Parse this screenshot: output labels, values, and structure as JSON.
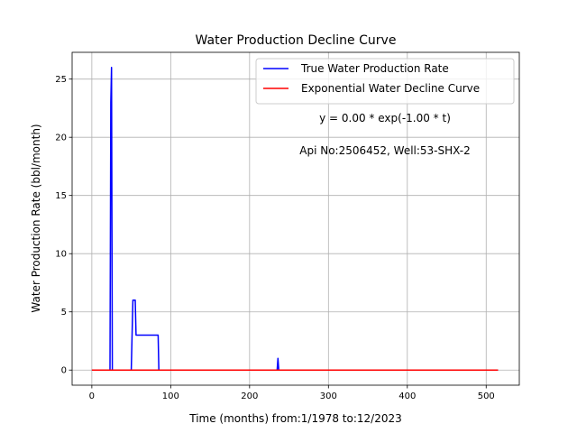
{
  "chart_data": {
    "type": "line",
    "title": "Water Production Decline Curve",
    "xlabel": "Time (months) from:1/1978 to:12/2023",
    "ylabel": "Water Production Rate (bbl/month)",
    "xlim": [
      -25,
      542
    ],
    "ylim": [
      -1.3,
      27.3
    ],
    "xticks": [
      0,
      100,
      200,
      300,
      400,
      500
    ],
    "yticks": [
      0,
      5,
      10,
      15,
      20,
      25
    ],
    "grid": true,
    "legend_position": "top-right",
    "series": [
      {
        "name": "True Water Production Rate",
        "color": "#0000ff",
        "x": [
          0,
          22,
          23,
          24,
          25,
          26,
          50,
          51,
          52,
          53,
          54,
          55,
          56,
          84,
          85,
          86,
          234,
          235,
          236,
          237,
          515
        ],
        "y": [
          0,
          0,
          0,
          23,
          26,
          0,
          0,
          3,
          6,
          6,
          6,
          6,
          3,
          3,
          0,
          0,
          0,
          0,
          1,
          0,
          0
        ]
      },
      {
        "name": "Exponential Water Decline Curve",
        "color": "#ff0000",
        "x": [
          0,
          515
        ],
        "y": [
          0,
          0
        ]
      }
    ],
    "annotations": [
      {
        "text": "y = 0.00 * exp(-1.00 * t)"
      },
      {
        "text": "Api No:2506452, Well:53-SHX-2"
      }
    ]
  }
}
